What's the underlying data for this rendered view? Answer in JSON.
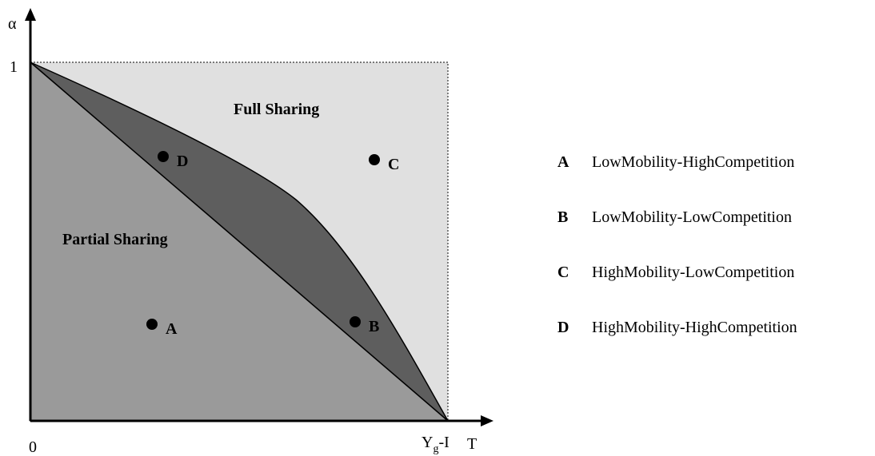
{
  "axes": {
    "y_label": "α",
    "y_max": "1",
    "origin": "0",
    "x_max": {
      "base": "Y",
      "sub": "g",
      "suffix": "-I"
    },
    "x_label": "T"
  },
  "regions": {
    "full": "Full Sharing",
    "partial": "Partial Sharing"
  },
  "points": [
    {
      "label": "D"
    },
    {
      "label": "C"
    },
    {
      "label": "A"
    },
    {
      "label": "B"
    }
  ],
  "legend": [
    {
      "key": "A",
      "text": "LowMobility-HighCompetition"
    },
    {
      "key": "B",
      "text": "LowMobility-LowCompetition"
    },
    {
      "key": "C",
      "text": "HighMobility-LowCompetition"
    },
    {
      "key": "D",
      "text": "HighMobility-HighCompetition"
    }
  ]
}
